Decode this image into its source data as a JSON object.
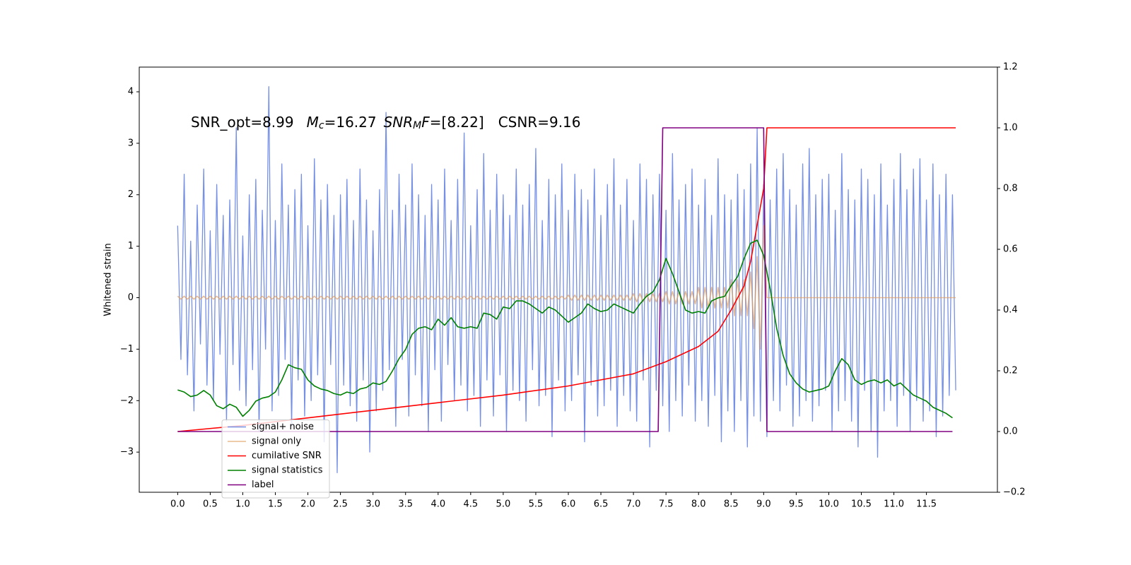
{
  "chart_data": {
    "type": "line",
    "ylabel": "Whitened strain",
    "annotation": [
      "SNR_opt=8.99",
      "M",
      "c",
      "=16.27",
      "SNR",
      "M",
      "F",
      "=[8.22]",
      "CSNR=9.16"
    ],
    "xlim": [
      -0.59,
      12.59
    ],
    "xticks": [
      {
        "value": 0,
        "label": "0.0"
      },
      0.5,
      {
        "value": 1,
        "label": "1.0"
      },
      1.5,
      {
        "value": 2,
        "label": "2.0"
      },
      2.5,
      {
        "value": 3,
        "label": "3.0"
      },
      3.5,
      {
        "value": 4,
        "label": "4.0"
      },
      4.5,
      {
        "value": 5,
        "label": "5.0"
      },
      5.5,
      {
        "value": 6,
        "label": "6.0"
      },
      6.5,
      {
        "value": 7,
        "label": "7.0"
      },
      7.5,
      {
        "value": 8,
        "label": "8.0"
      },
      8.5,
      {
        "value": 9,
        "label": "9.0"
      },
      9.5,
      {
        "value": 10,
        "label": "10.0"
      },
      10.5,
      {
        "value": 11,
        "label": "11.0"
      },
      11.5
    ],
    "ylim": [
      -3.78,
      4.48
    ],
    "yticks": [
      {
        "value": -3,
        "label": "−3"
      },
      {
        "value": -2,
        "label": "−2"
      },
      {
        "value": -1,
        "label": "−1"
      },
      0,
      1,
      2,
      3,
      4
    ],
    "y2lim": [
      -0.2,
      1.2
    ],
    "y2ticks": [
      {
        "value": -0.2,
        "label": "−0.2"
      },
      {
        "value": 0,
        "label": "0.0"
      },
      0.2,
      0.4,
      0.6,
      0.8,
      {
        "value": 1,
        "label": "1.0"
      },
      1.2
    ],
    "legend": "lower left",
    "x": [
      0,
      0.05,
      0.1,
      0.15,
      0.2,
      0.25,
      0.3,
      0.35,
      0.4,
      0.45,
      0.5,
      0.55,
      0.6,
      0.65,
      0.7,
      0.75,
      0.8,
      0.85,
      0.9,
      0.95,
      1,
      1.05,
      1.1,
      1.15,
      1.2,
      1.25,
      1.3,
      1.35,
      1.4,
      1.45,
      1.5,
      1.55,
      1.6,
      1.65,
      1.7,
      1.75,
      1.8,
      1.85,
      1.9,
      1.95,
      2,
      2.05,
      2.1,
      2.15,
      2.2,
      2.25,
      2.3,
      2.35,
      2.4,
      2.45,
      2.5,
      2.55,
      2.6,
      2.65,
      2.7,
      2.75,
      2.8,
      2.85,
      2.9,
      2.95,
      3,
      3.05,
      3.1,
      3.15,
      3.2,
      3.25,
      3.3,
      3.35,
      3.4,
      3.45,
      3.5,
      3.55,
      3.6,
      3.65,
      3.7,
      3.75,
      3.8,
      3.85,
      3.9,
      3.95,
      4,
      4.05,
      4.1,
      4.15,
      4.2,
      4.25,
      4.3,
      4.35,
      4.4,
      4.45,
      4.5,
      4.55,
      4.6,
      4.65,
      4.7,
      4.75,
      4.8,
      4.85,
      4.9,
      4.95,
      5,
      5.05,
      5.1,
      5.15,
      5.2,
      5.25,
      5.3,
      5.35,
      5.4,
      5.45,
      5.5,
      5.55,
      5.6,
      5.65,
      5.7,
      5.75,
      5.8,
      5.85,
      5.9,
      5.95,
      6,
      6.05,
      6.1,
      6.15,
      6.2,
      6.25,
      6.3,
      6.35,
      6.4,
      6.45,
      6.5,
      6.55,
      6.6,
      6.65,
      6.7,
      6.75,
      6.8,
      6.85,
      6.9,
      6.95,
      7,
      7.05,
      7.1,
      7.15,
      7.2,
      7.25,
      7.3,
      7.35,
      7.4,
      7.45,
      7.5,
      7.55,
      7.6,
      7.65,
      7.7,
      7.75,
      7.8,
      7.85,
      7.9,
      7.95,
      8,
      8.05,
      8.1,
      8.15,
      8.2,
      8.25,
      8.3,
      8.35,
      8.4,
      8.45,
      8.5,
      8.55,
      8.6,
      8.65,
      8.7,
      8.75,
      8.8,
      8.85,
      8.9,
      8.95,
      9,
      9.05,
      9.1,
      9.15,
      9.2,
      9.25,
      9.3,
      9.35,
      9.4,
      9.45,
      9.5,
      9.55,
      9.6,
      9.65,
      9.7,
      9.75,
      9.8,
      9.85,
      9.9,
      9.95,
      10,
      10.05,
      10.1,
      10.15,
      10.2,
      10.25,
      10.3,
      10.35,
      10.4,
      10.45,
      10.5,
      10.55,
      10.6,
      10.65,
      10.7,
      10.75,
      10.8,
      10.85,
      10.9,
      10.95,
      11,
      11.05,
      11.1,
      11.15,
      11.2,
      11.25,
      11.3,
      11.35,
      11.4,
      11.45,
      11.5,
      11.55,
      11.6,
      11.65,
      11.7,
      11.75,
      11.8,
      11.85,
      11.9,
      11.95
    ],
    "series": [
      {
        "name": "signal+ noise",
        "color": "#7690e6",
        "values": [
          1.4,
          -1.2,
          2.4,
          -1.5,
          1.1,
          -2.2,
          1.8,
          -0.9,
          2.5,
          -1.7,
          1.3,
          -2.0,
          2.2,
          -1.1,
          1.6,
          -2.4,
          1.9,
          -1.3,
          3.3,
          -1.8,
          1.2,
          -2.1,
          2.0,
          -1.4,
          2.3,
          -2.6,
          1.7,
          -1.0,
          4.1,
          -2.2,
          1.5,
          -1.9,
          2.6,
          -1.2,
          1.8,
          -2.5,
          2.1,
          -1.6,
          2.4,
          -2.3,
          1.4,
          -2.0,
          2.7,
          -1.5,
          1.9,
          -2.8,
          2.2,
          -1.3,
          1.6,
          -3.4,
          2.0,
          -1.7,
          2.3,
          -2.1,
          1.5,
          -2.4,
          2.5,
          -1.6,
          1.9,
          -3.0,
          1.3,
          -2.2,
          2.1,
          -1.8,
          3.6,
          -1.4,
          1.7,
          -2.5,
          2.4,
          -1.2,
          1.8,
          -2.3,
          2.6,
          -1.5,
          2.0,
          -2.1,
          1.6,
          -2.6,
          2.2,
          -1.4,
          1.9,
          -2.4,
          2.5,
          -1.3,
          1.5,
          -2.0,
          2.3,
          -1.7,
          3.2,
          -2.2,
          1.4,
          -1.9,
          2.1,
          -2.5,
          2.8,
          -1.6,
          1.7,
          -2.3,
          2.4,
          -1.5,
          2.0,
          -2.6,
          1.6,
          -1.8,
          2.5,
          -2.0,
          1.8,
          -2.4,
          2.2,
          -1.4,
          2.9,
          -2.1,
          1.5,
          -1.9,
          2.3,
          -2.7,
          2.0,
          -1.6,
          2.6,
          -2.2,
          1.7,
          -2.0,
          2.4,
          -1.5,
          2.1,
          -2.8,
          1.9,
          -1.7,
          2.5,
          -2.3,
          1.6,
          -2.1,
          2.2,
          -1.8,
          2.7,
          -2.5,
          1.8,
          -1.9,
          2.3,
          -2.2,
          1.5,
          -2.4,
          2.6,
          -1.6,
          2.3,
          -2.9,
          2.0,
          -1.8,
          2.4,
          -2.1,
          1.7,
          -2.6,
          2.8,
          -2.0,
          1.9,
          -2.3,
          2.2,
          -1.7,
          2.5,
          -2.4,
          1.8,
          -2.0,
          2.3,
          -2.5,
          1.6,
          -1.9,
          2.7,
          -2.8,
          2.0,
          -2.2,
          1.9,
          -2.6,
          2.4,
          -2.0,
          2.1,
          -2.9,
          2.6,
          -2.3,
          3.3,
          -2.4,
          2.2,
          -2.7,
          1.9,
          -2.0,
          2.5,
          -2.2,
          2.8,
          -1.7,
          2.1,
          -2.5,
          1.8,
          -2.3,
          2.6,
          -2.0,
          2.9,
          -2.4,
          2.0,
          -2.1,
          2.3,
          -1.8,
          2.4,
          -2.6,
          1.7,
          -2.2,
          2.8,
          -2.0,
          2.1,
          -2.4,
          1.9,
          -2.9,
          2.5,
          -1.8,
          2.3,
          -2.6,
          2.0,
          -3.1,
          2.6,
          -2.2,
          1.8,
          -2.0,
          2.3,
          -2.5,
          2.8,
          -1.9,
          2.1,
          -2.6,
          2.5,
          -2.0,
          2.7,
          -2.4,
          1.9,
          -2.2,
          2.6,
          -2.7,
          2.0,
          -2.3,
          2.4,
          -1.9,
          2.0,
          -1.8
        ]
      },
      {
        "name": "signal only",
        "color": "#e0a060",
        "values": [
          0.03,
          -0.03,
          0.03,
          -0.03,
          0.03,
          -0.03,
          0.03,
          -0.03,
          0.03,
          -0.03,
          0.03,
          -0.03,
          0.03,
          -0.03,
          0.03,
          -0.03,
          0.03,
          -0.03,
          0.03,
          -0.03,
          0.03,
          -0.03,
          0.03,
          -0.03,
          0.03,
          -0.03,
          0.03,
          -0.03,
          0.03,
          -0.03,
          0.03,
          -0.03,
          0.03,
          -0.03,
          0.03,
          -0.03,
          0.03,
          -0.03,
          0.03,
          -0.03,
          0.03,
          -0.03,
          0.03,
          -0.03,
          0.03,
          -0.03,
          0.03,
          -0.03,
          0.03,
          -0.03,
          0.03,
          -0.03,
          0.03,
          -0.03,
          0.03,
          -0.03,
          0.03,
          -0.03,
          0.03,
          -0.03,
          0.03,
          -0.03,
          0.03,
          -0.03,
          0.03,
          -0.03,
          0.03,
          -0.03,
          0.03,
          -0.03,
          0.03,
          -0.03,
          0.03,
          -0.03,
          0.03,
          -0.03,
          0.03,
          -0.03,
          0.03,
          -0.03,
          0.03,
          -0.03,
          0.03,
          -0.03,
          0.03,
          -0.03,
          0.03,
          -0.03,
          0.03,
          -0.03,
          0.03,
          -0.03,
          0.03,
          -0.03,
          0.03,
          -0.03,
          0.03,
          -0.03,
          0.03,
          -0.03,
          0.03,
          -0.03,
          0.03,
          -0.03,
          0.03,
          -0.03,
          0.03,
          -0.03,
          0.03,
          -0.03,
          0.03,
          -0.03,
          0.03,
          -0.03,
          0.03,
          -0.03,
          0.03,
          -0.03,
          0.03,
          -0.03,
          0.05,
          -0.05,
          0.05,
          -0.05,
          0.05,
          -0.05,
          0.05,
          -0.05,
          0.05,
          -0.05,
          0.05,
          -0.05,
          0.05,
          -0.05,
          0.05,
          -0.05,
          0.05,
          -0.05,
          0.05,
          -0.05,
          0.08,
          -0.08,
          0.08,
          -0.08,
          0.08,
          -0.08,
          0.08,
          -0.08,
          0.08,
          -0.08,
          0.12,
          -0.12,
          0.12,
          -0.12,
          0.12,
          -0.12,
          0.12,
          -0.12,
          0.12,
          -0.12,
          0.2,
          -0.2,
          0.2,
          -0.2,
          0.2,
          -0.2,
          0.2,
          -0.2,
          0.2,
          -0.2,
          0.35,
          -0.35,
          0.35,
          -0.35,
          0.35,
          -0.35,
          0.5,
          -0.6,
          0.8,
          -1.0,
          1.4,
          0,
          0,
          0,
          0,
          0,
          0,
          0,
          0,
          0,
          0,
          0,
          0,
          0,
          0,
          0,
          0,
          0,
          0,
          0,
          0,
          0,
          0,
          0,
          0,
          0,
          0,
          0,
          0,
          0,
          0,
          0,
          0,
          0,
          0,
          0,
          0,
          0,
          0,
          0,
          0,
          0,
          0,
          0,
          0,
          0,
          0,
          0,
          0,
          0,
          0,
          0,
          0,
          0,
          0,
          0,
          0,
          0,
          0,
          0
        ]
      },
      {
        "name": "cumilative SNR",
        "color": "#ff0000",
        "axis": "y2",
        "x": [
          0,
          1,
          2,
          3,
          4,
          5,
          6,
          6.5,
          7,
          7.5,
          8,
          8.3,
          8.5,
          8.7,
          8.8,
          8.9,
          9.0,
          9.05,
          11.95
        ],
        "values": [
          0,
          0.02,
          0.045,
          0.07,
          0.095,
          0.12,
          0.15,
          0.17,
          0.19,
          0.23,
          0.28,
          0.33,
          0.4,
          0.48,
          0.56,
          0.68,
          0.8,
          1.0,
          1.0
        ]
      },
      {
        "name": "signal statistics",
        "color": "#008000",
        "axis": "y2",
        "x": [
          0,
          0.1,
          0.2,
          0.3,
          0.4,
          0.5,
          0.6,
          0.7,
          0.8,
          0.9,
          1,
          1.1,
          1.2,
          1.3,
          1.4,
          1.5,
          1.6,
          1.7,
          1.8,
          1.9,
          2,
          2.1,
          2.2,
          2.3,
          2.4,
          2.5,
          2.6,
          2.7,
          2.8,
          2.9,
          3,
          3.1,
          3.2,
          3.3,
          3.4,
          3.5,
          3.6,
          3.7,
          3.8,
          3.9,
          4,
          4.1,
          4.2,
          4.3,
          4.4,
          4.5,
          4.6,
          4.7,
          4.8,
          4.9,
          5,
          5.1,
          5.2,
          5.3,
          5.4,
          5.5,
          5.6,
          5.7,
          5.8,
          5.9,
          6,
          6.1,
          6.2,
          6.3,
          6.4,
          6.5,
          6.6,
          6.7,
          6.8,
          6.9,
          7,
          7.1,
          7.2,
          7.3,
          7.4,
          7.5,
          7.6,
          7.7,
          7.8,
          7.9,
          8,
          8.1,
          8.2,
          8.3,
          8.4,
          8.5,
          8.6,
          8.7,
          8.8,
          8.9,
          9,
          9.1,
          9.2,
          9.3,
          9.4,
          9.5,
          9.6,
          9.7,
          9.8,
          9.9,
          10,
          10.1,
          10.2,
          10.3,
          10.4,
          10.5,
          10.6,
          10.7,
          10.8,
          10.9,
          11,
          11.1,
          11.2,
          11.3,
          11.4,
          11.5,
          11.6,
          11.7,
          11.8,
          11.9
        ],
        "values": [
          0.137,
          0.13,
          0.115,
          0.12,
          0.135,
          0.12,
          0.085,
          0.075,
          0.09,
          0.08,
          0.05,
          0.07,
          0.1,
          0.11,
          0.115,
          0.13,
          0.17,
          0.22,
          0.21,
          0.205,
          0.17,
          0.15,
          0.14,
          0.135,
          0.125,
          0.12,
          0.13,
          0.125,
          0.14,
          0.145,
          0.16,
          0.155,
          0.165,
          0.2,
          0.24,
          0.27,
          0.32,
          0.34,
          0.345,
          0.335,
          0.37,
          0.35,
          0.375,
          0.345,
          0.34,
          0.345,
          0.34,
          0.39,
          0.385,
          0.37,
          0.41,
          0.405,
          0.43,
          0.43,
          0.42,
          0.405,
          0.39,
          0.41,
          0.4,
          0.38,
          0.36,
          0.375,
          0.39,
          0.42,
          0.405,
          0.395,
          0.4,
          0.42,
          0.41,
          0.4,
          0.39,
          0.42,
          0.445,
          0.46,
          0.5,
          0.57,
          0.52,
          0.46,
          0.4,
          0.39,
          0.395,
          0.39,
          0.43,
          0.44,
          0.445,
          0.48,
          0.51,
          0.57,
          0.62,
          0.63,
          0.58,
          0.47,
          0.34,
          0.25,
          0.19,
          0.16,
          0.14,
          0.13,
          0.135,
          0.14,
          0.15,
          0.2,
          0.24,
          0.22,
          0.17,
          0.155,
          0.165,
          0.17,
          0.16,
          0.17,
          0.15,
          0.16,
          0.14,
          0.12,
          0.11,
          0.1,
          0.08,
          0.07,
          0.06,
          0.045
        ]
      },
      {
        "name": "label",
        "color": "#800080",
        "axis": "y2",
        "x": [
          0,
          7.38,
          7.45,
          9.0,
          9.05,
          11.9
        ],
        "values": [
          0,
          0,
          1,
          1,
          0,
          0
        ]
      }
    ]
  }
}
